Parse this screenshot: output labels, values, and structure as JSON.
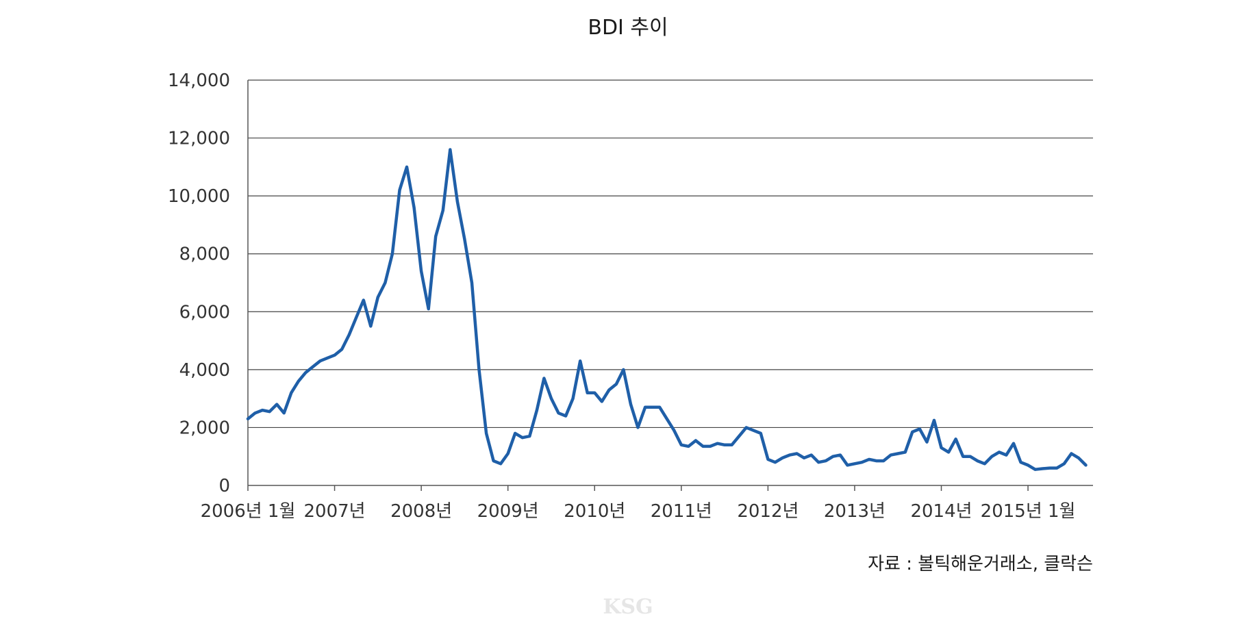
{
  "chart_data": {
    "type": "line",
    "title": "BDI 추이",
    "xlabel": "",
    "ylabel": "",
    "ylim": [
      0,
      14000
    ],
    "yticks": [
      0,
      2000,
      4000,
      6000,
      8000,
      10000,
      12000,
      14000
    ],
    "ytick_labels": [
      "0",
      "2,000",
      "4,000",
      "6,000",
      "8,000",
      "10,000",
      "12,000",
      "14,000"
    ],
    "xlim": [
      "2006-01",
      "2015-10"
    ],
    "xticks": [
      {
        "label": "2006년 1월",
        "date": "2006-01"
      },
      {
        "label": "2007년",
        "date": "2007-01"
      },
      {
        "label": "2008년",
        "date": "2008-01"
      },
      {
        "label": "2009년",
        "date": "2009-01"
      },
      {
        "label": "2010년",
        "date": "2010-01"
      },
      {
        "label": "2011년",
        "date": "2011-01"
      },
      {
        "label": "2012년",
        "date": "2012-01"
      },
      {
        "label": "2013년",
        "date": "2013-01"
      },
      {
        "label": "2014년",
        "date": "2014-01"
      },
      {
        "label": "2015년 1월",
        "date": "2015-01"
      }
    ],
    "grid": true,
    "series": [
      {
        "color": "#1f5fa8",
        "points": [
          [
            "2006-01",
            2300
          ],
          [
            "2006-02",
            2500
          ],
          [
            "2006-03",
            2600
          ],
          [
            "2006-04",
            2550
          ],
          [
            "2006-05",
            2800
          ],
          [
            "2006-06",
            2500
          ],
          [
            "2006-07",
            3200
          ],
          [
            "2006-08",
            3600
          ],
          [
            "2006-09",
            3900
          ],
          [
            "2006-10",
            4100
          ],
          [
            "2006-11",
            4300
          ],
          [
            "2006-12",
            4400
          ],
          [
            "2007-01",
            4500
          ],
          [
            "2007-02",
            4700
          ],
          [
            "2007-03",
            5200
          ],
          [
            "2007-04",
            5800
          ],
          [
            "2007-05",
            6400
          ],
          [
            "2007-06",
            5500
          ],
          [
            "2007-07",
            6500
          ],
          [
            "2007-08",
            7000
          ],
          [
            "2007-09",
            8000
          ],
          [
            "2007-10",
            10200
          ],
          [
            "2007-11",
            11000
          ],
          [
            "2007-12",
            9600
          ],
          [
            "2008-01",
            7400
          ],
          [
            "2008-02",
            6100
          ],
          [
            "2008-03",
            8600
          ],
          [
            "2008-04",
            9500
          ],
          [
            "2008-05",
            11600
          ],
          [
            "2008-06",
            9800
          ],
          [
            "2008-07",
            8500
          ],
          [
            "2008-08",
            7000
          ],
          [
            "2008-09",
            4000
          ],
          [
            "2008-10",
            1800
          ],
          [
            "2008-11",
            850
          ],
          [
            "2008-12",
            750
          ],
          [
            "2009-01",
            1100
          ],
          [
            "2009-02",
            1800
          ],
          [
            "2009-03",
            1650
          ],
          [
            "2009-04",
            1700
          ],
          [
            "2009-05",
            2600
          ],
          [
            "2009-06",
            3700
          ],
          [
            "2009-07",
            3000
          ],
          [
            "2009-08",
            2500
          ],
          [
            "2009-09",
            2400
          ],
          [
            "2009-10",
            3000
          ],
          [
            "2009-11",
            4300
          ],
          [
            "2009-12",
            3200
          ],
          [
            "2010-01",
            3200
          ],
          [
            "2010-02",
            2900
          ],
          [
            "2010-03",
            3300
          ],
          [
            "2010-04",
            3500
          ],
          [
            "2010-05",
            4000
          ],
          [
            "2010-06",
            2800
          ],
          [
            "2010-07",
            2000
          ],
          [
            "2010-08",
            2700
          ],
          [
            "2010-09",
            2700
          ],
          [
            "2010-10",
            2700
          ],
          [
            "2010-11",
            2300
          ],
          [
            "2010-12",
            1900
          ],
          [
            "2011-01",
            1400
          ],
          [
            "2011-02",
            1350
          ],
          [
            "2011-03",
            1550
          ],
          [
            "2011-04",
            1350
          ],
          [
            "2011-05",
            1350
          ],
          [
            "2011-06",
            1450
          ],
          [
            "2011-07",
            1400
          ],
          [
            "2011-08",
            1400
          ],
          [
            "2011-09",
            1700
          ],
          [
            "2011-10",
            2000
          ],
          [
            "2011-11",
            1900
          ],
          [
            "2011-12",
            1800
          ],
          [
            "2012-01",
            900
          ],
          [
            "2012-02",
            800
          ],
          [
            "2012-03",
            950
          ],
          [
            "2012-04",
            1050
          ],
          [
            "2012-05",
            1100
          ],
          [
            "2012-06",
            950
          ],
          [
            "2012-07",
            1050
          ],
          [
            "2012-08",
            800
          ],
          [
            "2012-09",
            850
          ],
          [
            "2012-10",
            1000
          ],
          [
            "2012-11",
            1050
          ],
          [
            "2012-12",
            700
          ],
          [
            "2013-01",
            750
          ],
          [
            "2013-02",
            800
          ],
          [
            "2013-03",
            900
          ],
          [
            "2013-04",
            850
          ],
          [
            "2013-05",
            850
          ],
          [
            "2013-06",
            1050
          ],
          [
            "2013-07",
            1100
          ],
          [
            "2013-08",
            1150
          ],
          [
            "2013-09",
            1850
          ],
          [
            "2013-10",
            1950
          ],
          [
            "2013-11",
            1500
          ],
          [
            "2013-12",
            2250
          ],
          [
            "2014-01",
            1300
          ],
          [
            "2014-02",
            1150
          ],
          [
            "2014-03",
            1600
          ],
          [
            "2014-04",
            1000
          ],
          [
            "2014-05",
            1000
          ],
          [
            "2014-06",
            850
          ],
          [
            "2014-07",
            750
          ],
          [
            "2014-08",
            1000
          ],
          [
            "2014-09",
            1150
          ],
          [
            "2014-10",
            1050
          ],
          [
            "2014-11",
            1450
          ],
          [
            "2014-12",
            800
          ],
          [
            "2015-01",
            700
          ],
          [
            "2015-02",
            550
          ],
          [
            "2015-03",
            580
          ],
          [
            "2015-04",
            600
          ],
          [
            "2015-05",
            600
          ],
          [
            "2015-06",
            750
          ],
          [
            "2015-07",
            1100
          ],
          [
            "2015-08",
            950
          ],
          [
            "2015-09",
            700
          ]
        ]
      }
    ]
  },
  "source_note": "자료 : 볼틱해운거래소, 클락슨",
  "watermark": "KSG"
}
